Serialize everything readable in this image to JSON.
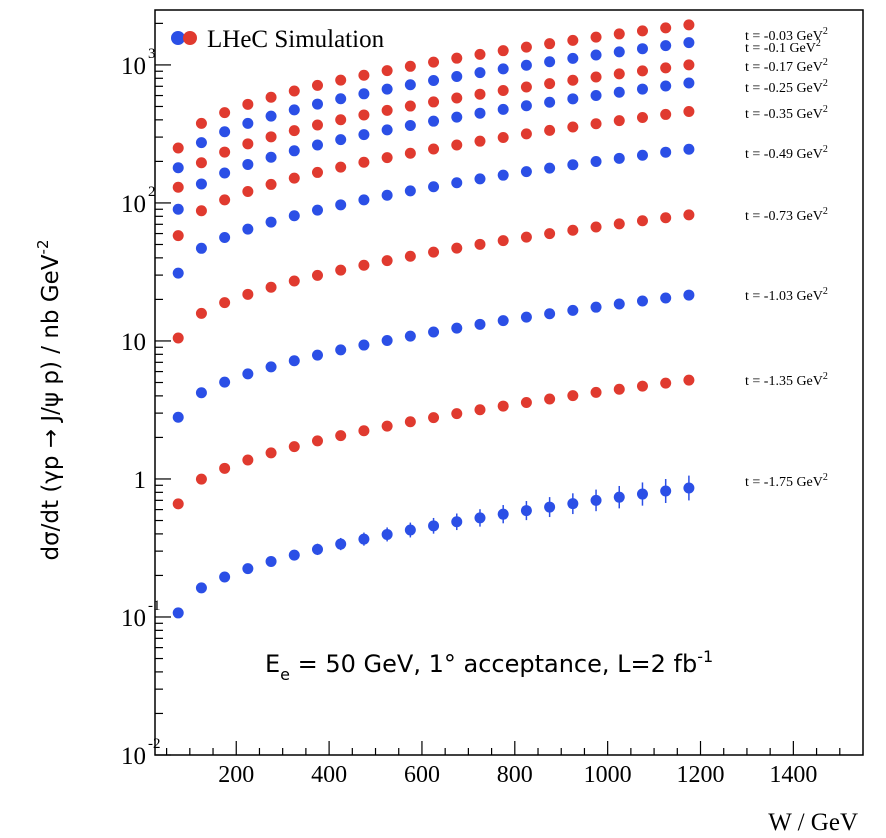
{
  "chart_data": {
    "type": "scatter",
    "ylabel": "dσ/dt (γp → J/ψ p) / nb GeV",
    "ylabel_sup": "-2",
    "xlabel": "W / GeV",
    "xlim": [
      25,
      1550
    ],
    "ylim": [
      0.01,
      2500
    ],
    "y_scale": "log",
    "x_ticks": [
      200,
      400,
      600,
      800,
      1000,
      1200,
      1400
    ],
    "y_ticks": [
      {
        "value": 0.01,
        "base": "10",
        "sup": "-2"
      },
      {
        "value": 0.1,
        "base": "10",
        "sup": "-1"
      },
      {
        "value": 1,
        "base": "1",
        "sup": ""
      },
      {
        "value": 10,
        "base": "10",
        "sup": ""
      },
      {
        "value": 100,
        "base": "10",
        "sup": "2"
      },
      {
        "value": 1000,
        "base": "10",
        "sup": "3"
      }
    ],
    "legend": {
      "label": "LHeC Simulation",
      "position": "top-left"
    },
    "annotation": {
      "main": "E",
      "sub": "e",
      "text": " = 50 GeV, 1° acceptance, L=2 fb",
      "sup": "-1"
    },
    "x": [
      75,
      125,
      175,
      225,
      275,
      325,
      375,
      425,
      475,
      525,
      575,
      625,
      675,
      725,
      775,
      825,
      875,
      925,
      975,
      1025,
      1075,
      1125,
      1175
    ],
    "series": [
      {
        "name": "t = -0.03 GeV",
        "sup": "2",
        "color": "#e03a2f",
        "ymin": 250,
        "ymax": 1950,
        "err": 0
      },
      {
        "name": "t = -0.1 GeV",
        "sup": "2",
        "color": "#2b4fe6",
        "ymin": 180,
        "ymax": 1450,
        "err": 0
      },
      {
        "name": "t = -0.17 GeV",
        "sup": "2",
        "color": "#e03a2f",
        "ymin": 130,
        "ymax": 1000,
        "err": 0
      },
      {
        "name": "t = -0.25 GeV",
        "sup": "2",
        "color": "#2b4fe6",
        "ymin": 90,
        "ymax": 740,
        "err": 0
      },
      {
        "name": "t = -0.35 GeV",
        "sup": "2",
        "color": "#e03a2f",
        "ymin": 58,
        "ymax": 460,
        "err": 0
      },
      {
        "name": "t = -0.49 GeV",
        "sup": "2",
        "color": "#2b4fe6",
        "ymin": 31,
        "ymax": 245,
        "err": 0
      },
      {
        "name": "t = -0.73 GeV",
        "sup": "2",
        "color": "#e03a2f",
        "ymin": 10.5,
        "ymax": 82,
        "err": 0
      },
      {
        "name": "t = -1.03 GeV",
        "sup": "2",
        "color": "#2b4fe6",
        "ymin": 2.8,
        "ymax": 21.5,
        "err": 0.02
      },
      {
        "name": "t = -1.35 GeV",
        "sup": "2",
        "color": "#e03a2f",
        "ymin": 0.66,
        "ymax": 5.2,
        "err": 0.03
      },
      {
        "name": "t = -1.75 GeV",
        "sup": "2",
        "color": "#2b4fe6",
        "ymin": 0.107,
        "ymax": 0.86,
        "err": 0.2
      }
    ],
    "grid": false
  }
}
